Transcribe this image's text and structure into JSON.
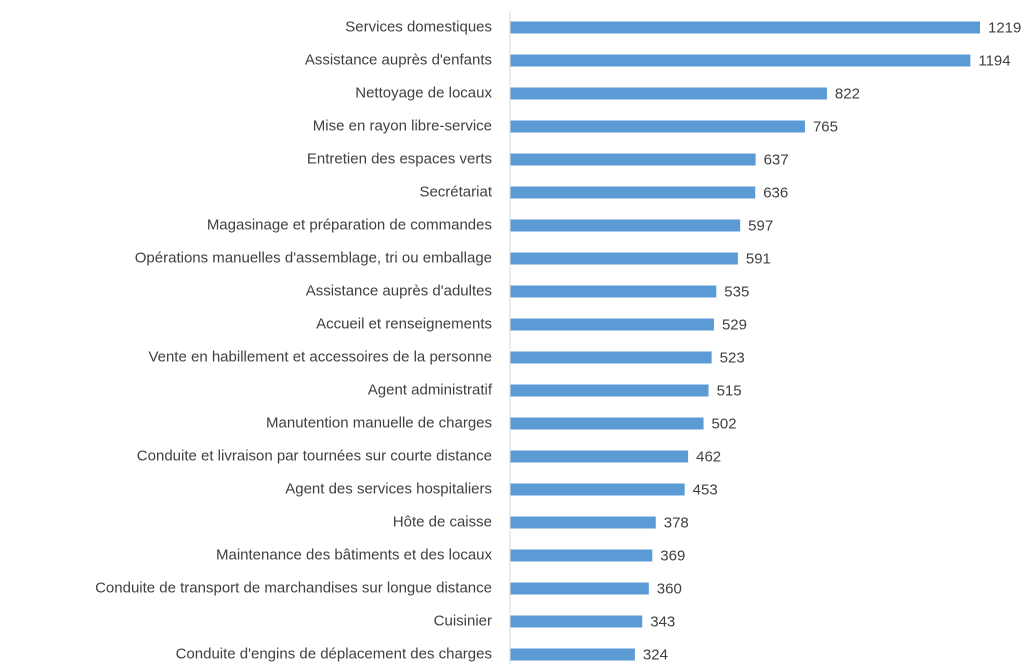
{
  "chart_data": {
    "type": "bar",
    "orientation": "horizontal",
    "categories": [
      "Services domestiques",
      "Assistance auprès d'enfants",
      "Nettoyage de locaux",
      "Mise en rayon libre-service",
      "Entretien des espaces verts",
      "Secrétariat",
      "Magasinage et préparation de commandes",
      "Opérations manuelles d'assemblage, tri ou emballage",
      "Assistance auprès d'adultes",
      "Accueil et renseignements",
      "Vente en habillement et accessoires de la personne",
      "Agent administratif",
      "Manutention manuelle de charges",
      "Conduite et livraison par tournées sur courte distance",
      "Agent des services hospitaliers",
      "Hôte de caisse",
      "Maintenance des bâtiments et des locaux",
      "Conduite de transport de marchandises sur longue distance",
      "Cuisinier",
      "Conduite d'engins de déplacement des charges"
    ],
    "values": [
      1219,
      1194,
      822,
      765,
      637,
      636,
      597,
      591,
      535,
      529,
      523,
      515,
      502,
      462,
      453,
      378,
      369,
      360,
      343,
      324
    ],
    "color": "#5b9bd5"
  }
}
